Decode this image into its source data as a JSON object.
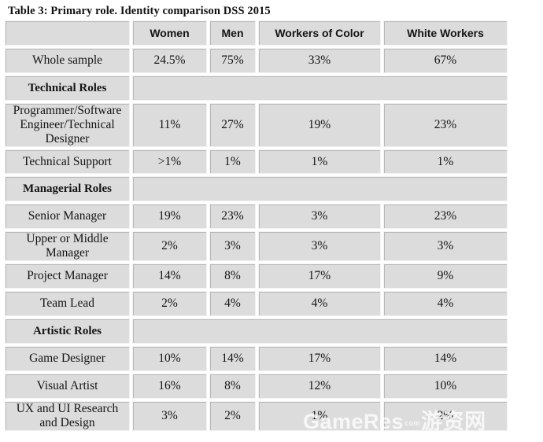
{
  "caption": "Table 3: Primary role. Identity comparison DSS 2015",
  "header": [
    "",
    "Women",
    "Men",
    "Workers of Color",
    "White Workers"
  ],
  "rows": {
    "whole_sample": {
      "label": "Whole sample",
      "values": [
        "24.5%",
        "75%",
        "33%",
        "67%"
      ]
    },
    "technical_section": "Technical Roles",
    "programmer": {
      "label": "Programmer/Software Engineer/Technical Designer",
      "values": [
        "11%",
        "27%",
        "19%",
        "23%"
      ]
    },
    "tech_support": {
      "label": "Technical Support",
      "values": [
        ">1%",
        "1%",
        "1%",
        "1%"
      ]
    },
    "managerial_section": "Managerial Roles",
    "senior_manager": {
      "label": "Senior Manager",
      "values": [
        "19%",
        "23%",
        "3%",
        "23%"
      ]
    },
    "upper_middle": {
      "label": "Upper or Middle Manager",
      "values": [
        "2%",
        "3%",
        "3%",
        "3%"
      ]
    },
    "project_manager": {
      "label": "Project Manager",
      "values": [
        "14%",
        "8%",
        "17%",
        "9%"
      ]
    },
    "team_lead": {
      "label": "Team Lead",
      "values": [
        "2%",
        "4%",
        "4%",
        "4%"
      ]
    },
    "artistic_section": "Artistic Roles",
    "game_designer": {
      "label": "Game Designer",
      "values": [
        "10%",
        "14%",
        "17%",
        "14%"
      ]
    },
    "visual_artist": {
      "label": "Visual Artist",
      "values": [
        "16%",
        "8%",
        "12%",
        "10%"
      ]
    },
    "ux_ui": {
      "label": "UX and UI Research and Design",
      "values": [
        "3%",
        "2%",
        "1%",
        "2%"
      ]
    }
  },
  "watermark": {
    "text": "GameRes",
    "dot": "com",
    "cjk": "游资网"
  }
}
